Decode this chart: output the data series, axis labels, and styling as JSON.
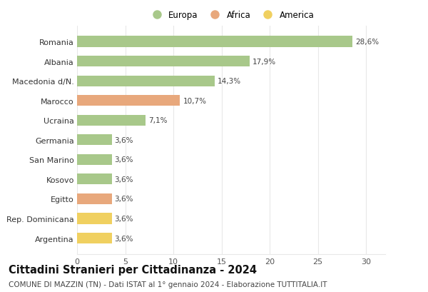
{
  "categories": [
    "Romania",
    "Albania",
    "Macedonia d/N.",
    "Marocco",
    "Ucraina",
    "Germania",
    "San Marino",
    "Kosovo",
    "Egitto",
    "Rep. Dominicana",
    "Argentina"
  ],
  "values": [
    28.6,
    17.9,
    14.3,
    10.7,
    7.1,
    3.6,
    3.6,
    3.6,
    3.6,
    3.6,
    3.6
  ],
  "labels": [
    "28,6%",
    "17,9%",
    "14,3%",
    "10,7%",
    "7,1%",
    "3,6%",
    "3,6%",
    "3,6%",
    "3,6%",
    "3,6%",
    "3,6%"
  ],
  "continents": [
    "Europa",
    "Europa",
    "Europa",
    "Africa",
    "Europa",
    "Europa",
    "Europa",
    "Europa",
    "Africa",
    "America",
    "America"
  ],
  "colors": {
    "Europa": "#a8c88a",
    "Africa": "#e8a87c",
    "America": "#f0d060"
  },
  "legend_items": [
    "Europa",
    "Africa",
    "America"
  ],
  "xlim": [
    0,
    32
  ],
  "xticks": [
    0,
    5,
    10,
    15,
    20,
    25,
    30
  ],
  "title": "Cittadini Stranieri per Cittadinanza - 2024",
  "subtitle": "COMUNE DI MAZZIN (TN) - Dati ISTAT al 1° gennaio 2024 - Elaborazione TUTTITALIA.IT",
  "title_fontsize": 10.5,
  "subtitle_fontsize": 7.5,
  "background_color": "#ffffff",
  "bar_height": 0.55,
  "grid_color": "#e8e8e8"
}
